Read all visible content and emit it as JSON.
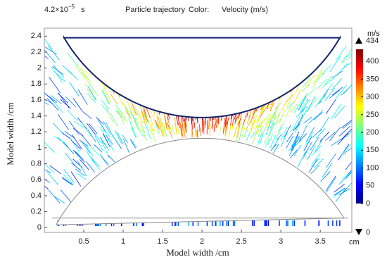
{
  "chart_data": {
    "type": "particle-trajectory",
    "time_label": {
      "mantissa": "4.2×10",
      "exponent": "−5",
      "unit": "s"
    },
    "title": "Particle trajectory",
    "color_label": "Color:",
    "color_expression": "Velocity  (m/s)",
    "xlabel": "Model width /cm",
    "ylabel": "Model width /cm",
    "x_unit": "cm",
    "xlim": [
      0,
      3.9
    ],
    "ylim": [
      -0.06,
      2.5
    ],
    "xticks": [
      0.5,
      1,
      1.5,
      2,
      2.5,
      3,
      3.5
    ],
    "yticks": [
      0,
      0.2,
      0.4,
      0.6,
      0.8,
      1,
      1.2,
      1.4,
      1.6,
      1.8,
      2,
      2.2,
      2.4
    ],
    "colorbar": {
      "unit": "m/s",
      "clim": [
        0,
        434
      ],
      "ticks": [
        0,
        50,
        100,
        150,
        200,
        250,
        300,
        350,
        400
      ]
    }
  }
}
